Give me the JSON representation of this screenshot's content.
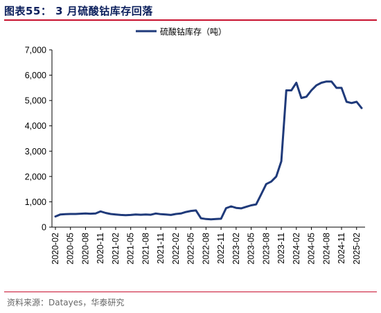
{
  "header": {
    "title": "图表55：  3 月硫酸钴库存回落"
  },
  "footer": {
    "source": "资料来源：Datayes，华泰研究"
  },
  "colors": {
    "series": "#1f3a7a",
    "title": "#0b1f5c",
    "rule": "#c8102e"
  },
  "chart_data": {
    "type": "line",
    "title": "",
    "xlabel": "",
    "ylabel": "",
    "ylim": [
      0,
      7000
    ],
    "yticks": [
      0,
      1000,
      2000,
      3000,
      4000,
      5000,
      6000,
      7000
    ],
    "ytick_labels": [
      "0",
      "1,000",
      "2,000",
      "3,000",
      "4,000",
      "5,000",
      "6,000",
      "7,000"
    ],
    "x_start": "2020-02",
    "x_end": "2025-03",
    "xtick_labels": [
      "2020-02",
      "2020-05",
      "2020-08",
      "2020-11",
      "2021-02",
      "2021-05",
      "2021-08",
      "2021-11",
      "2022-02",
      "2022-05",
      "2022-08",
      "2022-11",
      "2023-02",
      "2023-05",
      "2023-08",
      "2023-11",
      "2024-02",
      "2024-05",
      "2024-08",
      "2024-11",
      "2025-02"
    ],
    "legend": {
      "position": "top-center"
    },
    "grid": false,
    "series": [
      {
        "name": "硫酸钴库存（吨）",
        "x": [
          "2020-02",
          "2020-03",
          "2020-04",
          "2020-05",
          "2020-06",
          "2020-07",
          "2020-08",
          "2020-09",
          "2020-10",
          "2020-11",
          "2020-12",
          "2021-01",
          "2021-02",
          "2021-03",
          "2021-04",
          "2021-05",
          "2021-06",
          "2021-07",
          "2021-08",
          "2021-09",
          "2021-10",
          "2021-11",
          "2021-12",
          "2022-01",
          "2022-02",
          "2022-03",
          "2022-04",
          "2022-05",
          "2022-06",
          "2022-07",
          "2022-08",
          "2022-09",
          "2022-10",
          "2022-11",
          "2022-12",
          "2023-01",
          "2023-02",
          "2023-03",
          "2023-04",
          "2023-05",
          "2023-06",
          "2023-07",
          "2023-08",
          "2023-09",
          "2023-10",
          "2023-11",
          "2023-12",
          "2024-01",
          "2024-02",
          "2024-03",
          "2024-04",
          "2024-05",
          "2024-06",
          "2024-07",
          "2024-08",
          "2024-09",
          "2024-10",
          "2024-11",
          "2024-12",
          "2025-01",
          "2025-02",
          "2025-03"
        ],
        "values": [
          420,
          500,
          510,
          520,
          520,
          530,
          540,
          530,
          540,
          620,
          560,
          520,
          500,
          480,
          470,
          480,
          500,
          490,
          500,
          490,
          540,
          510,
          500,
          480,
          520,
          540,
          600,
          640,
          660,
          350,
          320,
          310,
          320,
          330,
          750,
          820,
          760,
          740,
          800,
          860,
          900,
          1300,
          1700,
          1800,
          2000,
          2600,
          5400,
          5400,
          5700,
          5100,
          5150,
          5400,
          5600,
          5700,
          5750,
          5750,
          5500,
          5500,
          4950,
          4900,
          4950,
          4700
        ]
      }
    ]
  }
}
